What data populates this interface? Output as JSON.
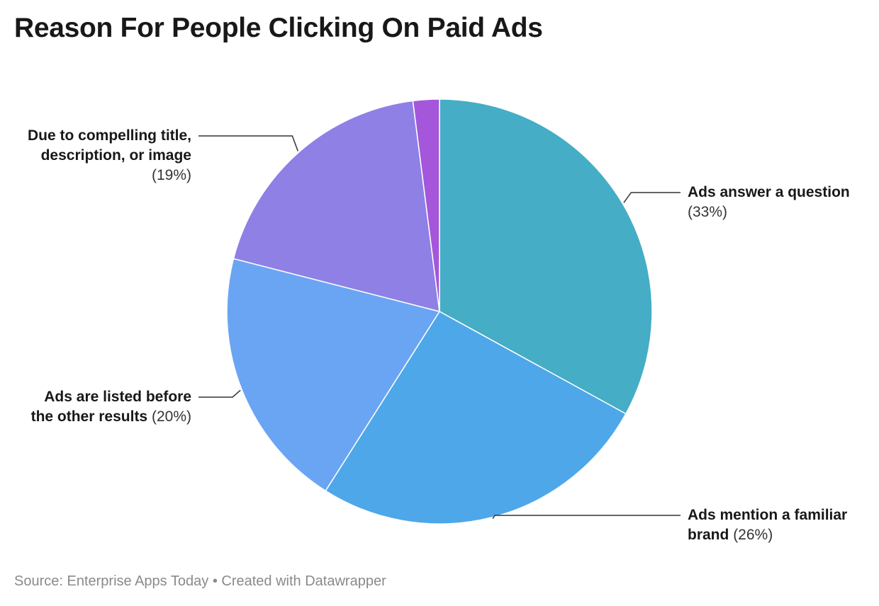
{
  "title": "Reason For People Clicking On Paid Ads",
  "footer": {
    "source": "Source: Enterprise Apps Today",
    "separator": "•",
    "credit": "Created with Datawrapper"
  },
  "chart_data": {
    "type": "pie",
    "title": "Reason For People Clicking On Paid Ads",
    "slices": [
      {
        "label_line1": "Ads answer a question",
        "label_line2": "",
        "pct_text": "(33%)",
        "value": 33,
        "color": "#45adc5"
      },
      {
        "label_line1": "Ads mention a familiar",
        "label_line2": "brand",
        "pct_text": "(26%)",
        "value": 26,
        "color": "#4ea7e8"
      },
      {
        "label_line1": "Ads are listed before",
        "label_line2": "the other results",
        "pct_text": "(20%)",
        "value": 20,
        "color": "#6aa5f3"
      },
      {
        "label_line1": "Due to compelling title,",
        "label_line2": "description, or image",
        "pct_text": "(19%)",
        "value": 19,
        "color": "#8e80e5"
      },
      {
        "label_line1": "",
        "label_line2": "",
        "pct_text": "",
        "value": 2,
        "color": "#a457db"
      }
    ],
    "start_angle_deg": 0,
    "direction": "clockwise",
    "slice_border_color": "#ffffff",
    "leader_line_color": "#333333"
  }
}
